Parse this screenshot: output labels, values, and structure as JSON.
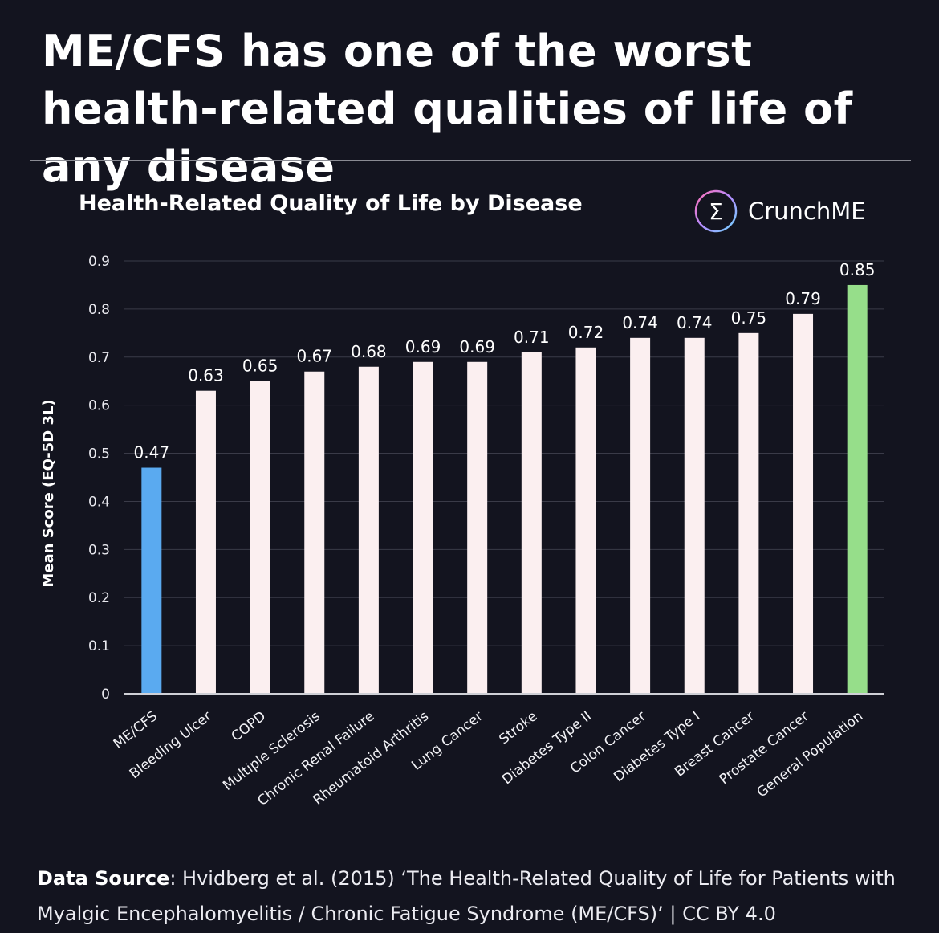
{
  "headline": "ME/CFS has one of the worst health-related qualities of life of any disease",
  "brand": {
    "name": "CrunchME",
    "icon": "sigma-icon"
  },
  "source": {
    "label": "Data Source",
    "text": ": Hvidberg et al. (2015) ‘The Health-Related Quality of Life for Patients with Myalgic Encephalomyelitis / Chronic Fatigue Syndrome (ME/CFS)’ | CC BY 4.0"
  },
  "chart_data": {
    "type": "bar",
    "title": "Health-Related Quality of Life by Disease",
    "ylabel": "Mean Score (EQ-5D 3L)",
    "xlabel": "",
    "ylim": [
      0,
      0.9
    ],
    "yticks": [
      "0",
      "0.1",
      "0.2",
      "0.3",
      "0.4",
      "0.5",
      "0.6",
      "0.7",
      "0.8",
      "0.9"
    ],
    "grid": true,
    "categories": [
      "ME/CFS",
      "Bleeding Ulcer",
      "COPD",
      "Multiple Sclerosis",
      "Chronic Renal Failure",
      "Rheumatoid Arthritis",
      "Lung Cancer",
      "Stroke",
      "Diabetes Type II",
      "Colon Cancer",
      "Diabetes Type I",
      "Breast Cancer",
      "Prostate Cancer",
      "General Population"
    ],
    "values": [
      0.47,
      0.63,
      0.65,
      0.67,
      0.68,
      0.69,
      0.69,
      0.71,
      0.72,
      0.74,
      0.74,
      0.75,
      0.79,
      0.85
    ],
    "value_labels": [
      "0.47",
      "0.63",
      "0.65",
      "0.67",
      "0.68",
      "0.69",
      "0.69",
      "0.71",
      "0.72",
      "0.74",
      "0.74",
      "0.75",
      "0.79",
      "0.85"
    ],
    "colors": {
      "highlight": "#5aaaf0",
      "default": "#fbeff0",
      "reference": "#96de8a",
      "grid": "#3a3b48",
      "axis": "#cfd0d6"
    },
    "bar_colors": [
      "highlight",
      "default",
      "default",
      "default",
      "default",
      "default",
      "default",
      "default",
      "default",
      "default",
      "default",
      "default",
      "default",
      "reference"
    ]
  }
}
